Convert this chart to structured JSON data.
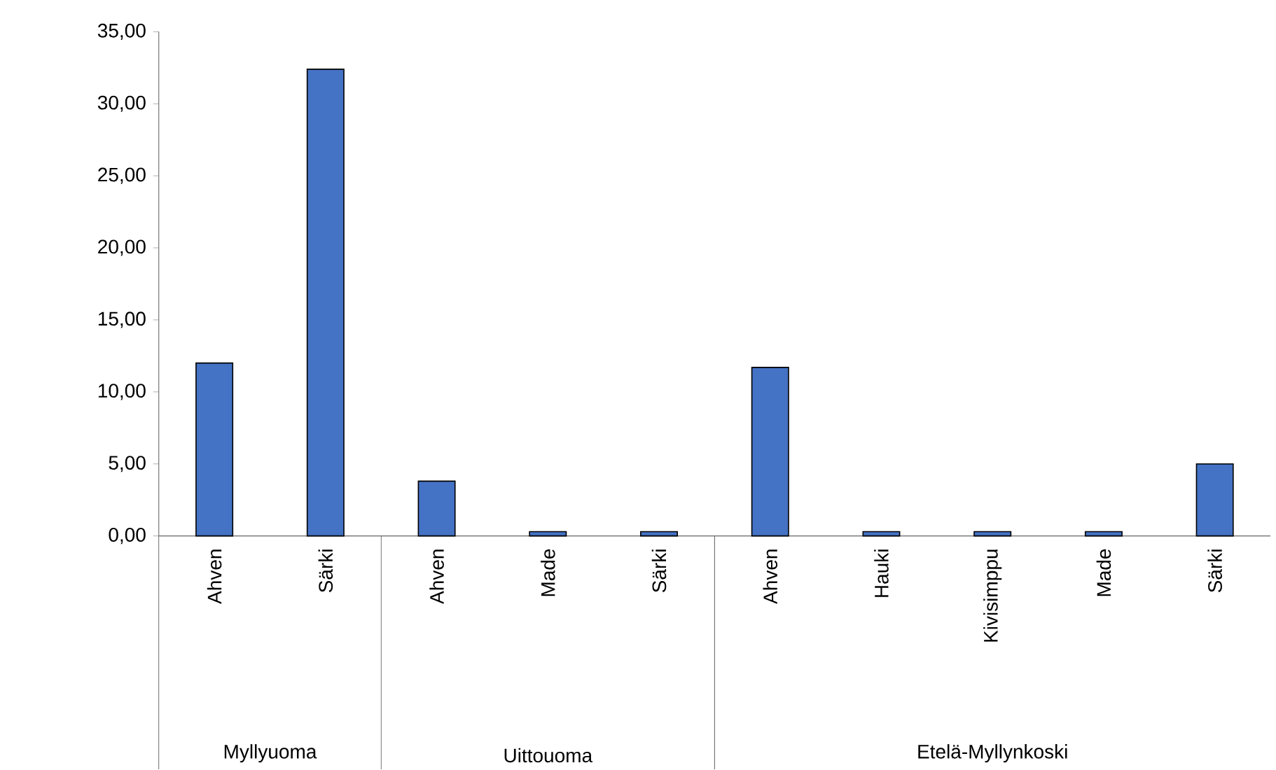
{
  "chart_data": {
    "type": "bar",
    "categories": [
      "Ahven",
      "Särki",
      "Ahven",
      "Made",
      "Särki",
      "Ahven",
      "Hauki",
      "Kivisimppu",
      "Made",
      "Särki"
    ],
    "values": [
      12.0,
      32.4,
      3.8,
      0.3,
      0.3,
      11.7,
      0.3,
      0.3,
      0.3,
      5.0
    ],
    "color": "#4472c4",
    "ylim": [
      0,
      35
    ],
    "yticks": [
      {
        "value": 0,
        "label": "0,00"
      },
      {
        "value": 5,
        "label": "5,00"
      },
      {
        "value": 10,
        "label": "10,00"
      },
      {
        "value": 15,
        "label": "15,00"
      },
      {
        "value": 20,
        "label": "20,00"
      },
      {
        "value": 25,
        "label": "25,00"
      },
      {
        "value": 30,
        "label": "30,00"
      },
      {
        "value": 35,
        "label": "35,00"
      }
    ],
    "annotations": [
      "Myllyuoma",
      "Uittouoma",
      "Etelä-Myllynkoski"
    ]
  }
}
